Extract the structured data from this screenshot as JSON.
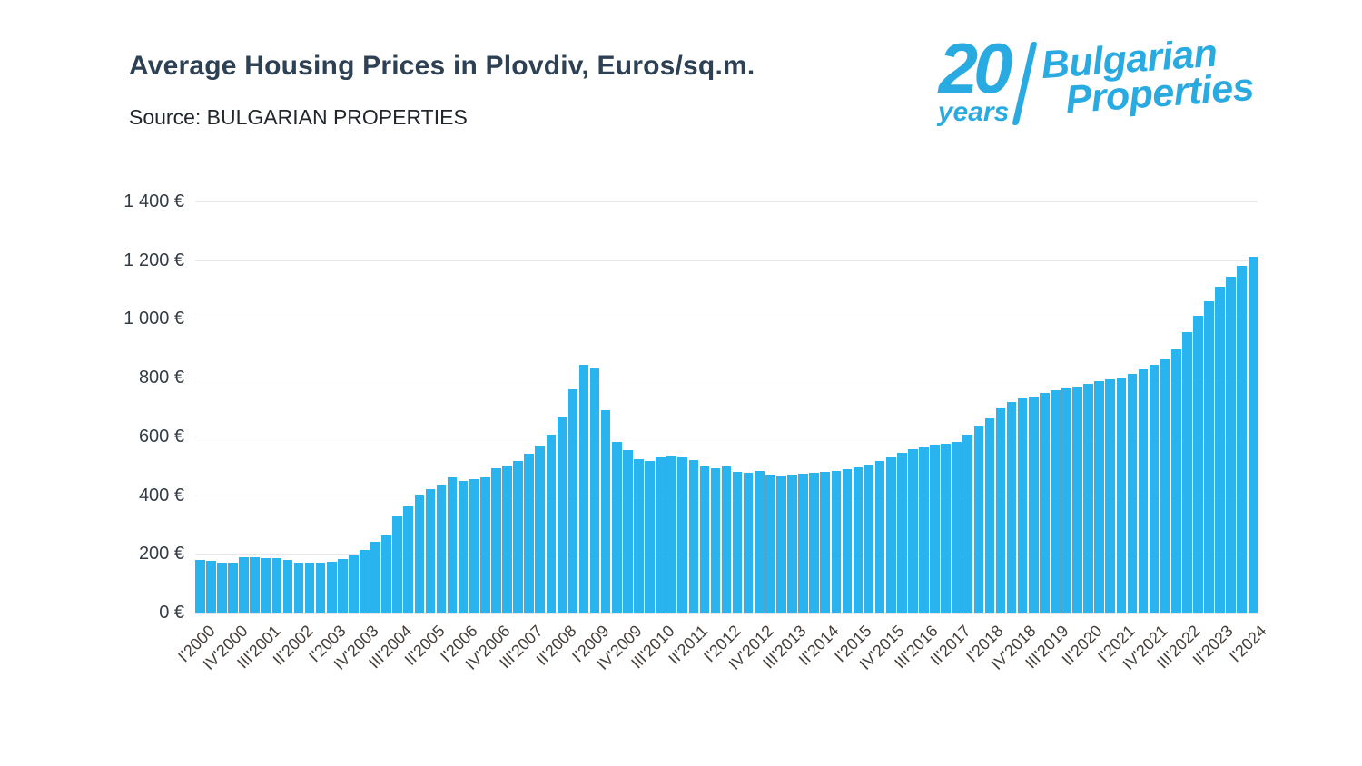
{
  "header": {
    "title": "Average Housing Prices in Plovdiv, Euros/sq.m.",
    "source": "Source: BULGARIAN PROPERTIES"
  },
  "logo": {
    "number": "20",
    "years": "years",
    "brand_line1": "Bulgarian",
    "brand_line2": "Properties",
    "color": "#29abe2"
  },
  "chart_data": {
    "type": "bar",
    "title": "Average Housing Prices in Plovdiv, Euros/sq.m.",
    "xlabel": "",
    "ylabel": "",
    "ylim": [
      0,
      1400
    ],
    "grid": true,
    "legend": false,
    "bar_color": "#29b3ef",
    "grid_color": "#e7e7e7",
    "y_tick_values": [
      0,
      200,
      400,
      600,
      800,
      1000,
      1200,
      1400
    ],
    "y_ticks": [
      "0 €",
      "200 €",
      "400 €",
      "600 €",
      "800 €",
      "1 000 €",
      "1 200 €",
      "1 400 €"
    ],
    "x_tick_every": 3,
    "categories": [
      "I'2000",
      "II'2000",
      "III'2000",
      "IV'2000",
      "I'2001",
      "II'2001",
      "III'2001",
      "IV'2001",
      "I'2002",
      "II'2002",
      "III'2002",
      "IV'2002",
      "I'2003",
      "II'2003",
      "III'2003",
      "IV'2003",
      "I'2004",
      "II'2004",
      "III'2004",
      "IV'2004",
      "I'2005",
      "II'2005",
      "III'2005",
      "IV'2005",
      "I'2006",
      "II'2006",
      "III'2006",
      "IV'2006",
      "I'2007",
      "II'2007",
      "III'2007",
      "IV'2007",
      "I'2008",
      "II'2008",
      "III'2008",
      "IV'2008",
      "I'2009",
      "II'2009",
      "III'2009",
      "IV'2009",
      "I'2010",
      "II'2010",
      "III'2010",
      "IV'2010",
      "I'2011",
      "II'2011",
      "III'2011",
      "IV'2011",
      "I'2012",
      "II'2012",
      "III'2012",
      "IV'2012",
      "I'2013",
      "II'2013",
      "III'2013",
      "IV'2013",
      "I'2014",
      "II'2014",
      "III'2014",
      "IV'2014",
      "I'2015",
      "II'2015",
      "III'2015",
      "IV'2015",
      "I'2016",
      "II'2016",
      "III'2016",
      "IV'2016",
      "I'2017",
      "II'2017",
      "III'2017",
      "IV'2017",
      "I'2018",
      "II'2018",
      "III'2018",
      "IV'2018",
      "I'2019",
      "II'2019",
      "III'2019",
      "IV'2019",
      "I'2020",
      "II'2020",
      "III'2020",
      "IV'2020",
      "I'2021",
      "II'2021",
      "III'2021",
      "IV'2021",
      "I'2022",
      "II'2022",
      "III'2022",
      "IV'2022",
      "I'2023",
      "II'2023",
      "III'2023",
      "IV'2023",
      "I'2024"
    ],
    "values": [
      180,
      176,
      171,
      169,
      190,
      188,
      186,
      184,
      178,
      171,
      170,
      169,
      172,
      182,
      196,
      212,
      242,
      262,
      330,
      362,
      402,
      420,
      437,
      460,
      448,
      455,
      460,
      490,
      500,
      515,
      540,
      570,
      605,
      665,
      760,
      845,
      830,
      690,
      580,
      553,
      522,
      515,
      528,
      535,
      528,
      520,
      498,
      492,
      497,
      480,
      475,
      483,
      470,
      468,
      470,
      473,
      476,
      478,
      483,
      488,
      495,
      503,
      515,
      530,
      545,
      557,
      563,
      572,
      576,
      582,
      605,
      638,
      660,
      700,
      718,
      728,
      735,
      748,
      757,
      765,
      770,
      778,
      788,
      795,
      800,
      812,
      828,
      845,
      862,
      895,
      955,
      1010,
      1060,
      1110,
      1145,
      1180,
      1210
    ]
  }
}
